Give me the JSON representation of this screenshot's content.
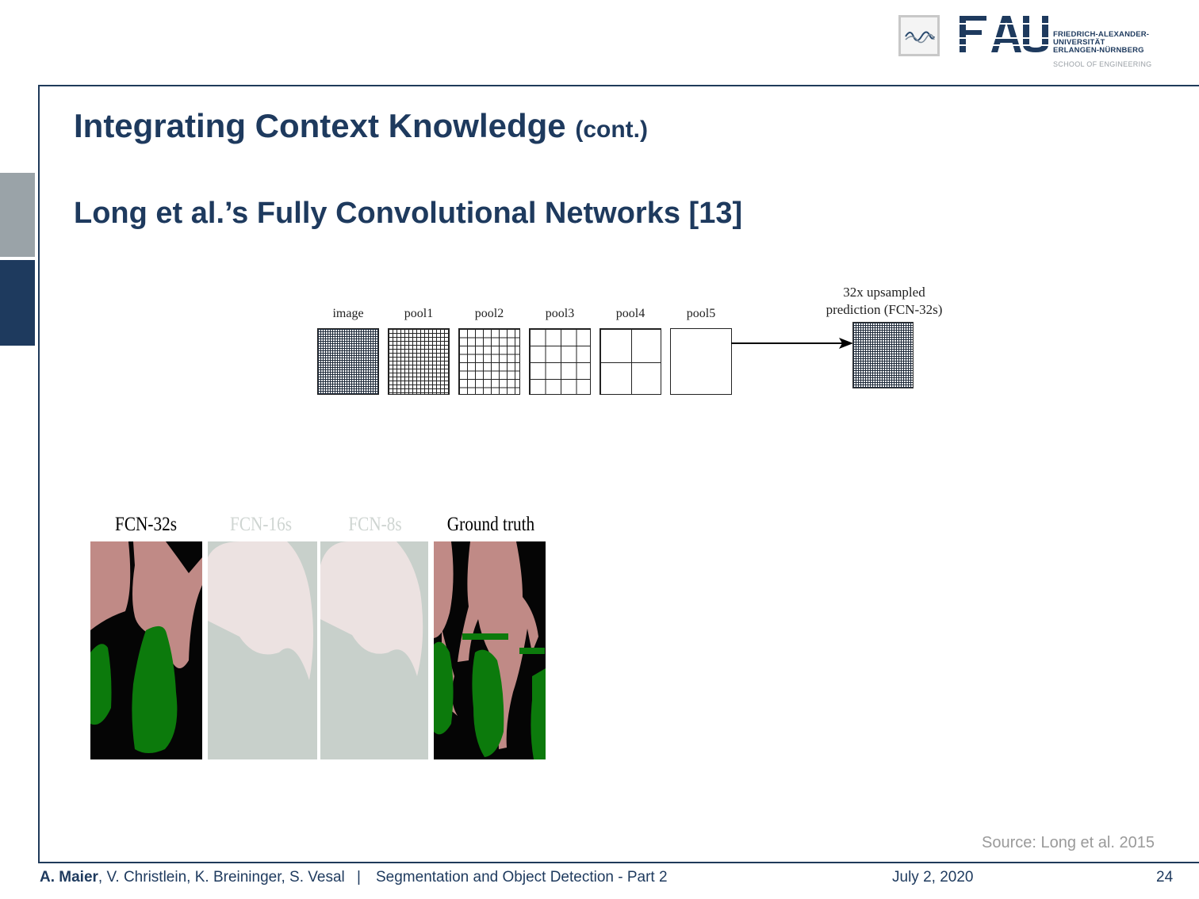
{
  "branding": {
    "logo_text": "FAU",
    "university_line1": "FRIEDRICH-ALEXANDER-",
    "university_line2": "UNIVERSITÄT",
    "university_line3": "ERLANGEN-NÜRNBERG",
    "school": "SCHOOL OF ENGINEERING",
    "accent_color": "#1e3a5e"
  },
  "slide": {
    "title": "Integrating Context Knowledge",
    "title_suffix": "(cont.)",
    "subtitle": "Long et al.’s Fully Convolutional Networks [13]"
  },
  "diagram": {
    "layers": [
      "image",
      "pool1",
      "pool2",
      "pool3",
      "pool4",
      "pool5"
    ],
    "prediction_line1": "32x upsampled",
    "prediction_line2": "prediction (FCN-32s)"
  },
  "results": {
    "labels": [
      "FCN-32s",
      "FCN-16s",
      "FCN-8s",
      "Ground truth"
    ],
    "colors": {
      "background": "#050505",
      "person": "#c08a86",
      "bike": "#0c7a0c"
    }
  },
  "source": "Source: Long et al.  2015",
  "footer": {
    "lead_author": "A. Maier",
    "other_authors": ", V. Christlein, K. Breininger, S. Vesal",
    "separator": "|",
    "lecture": "Segmentation and Object Detection - Part 2",
    "date": "July 2, 2020",
    "page": "24"
  }
}
